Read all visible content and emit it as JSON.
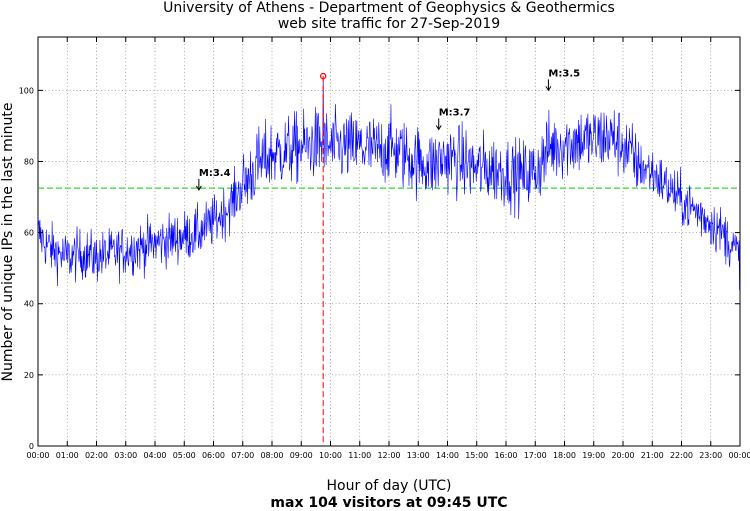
{
  "chart_data": {
    "type": "line",
    "title_lines": [
      "University of Athens - Department of Geophysics & Geothermics",
      "web site traffic for 27-Sep-2019"
    ],
    "xlabel": "Hour of day (UTC)",
    "ylabel": "Number of unique IPs in the last minute",
    "bottom_note": "max 104 visitors at 09:45 UTC",
    "xlim_hours": [
      0,
      24
    ],
    "ylim": [
      0,
      115
    ],
    "y_ticks": [
      0,
      20,
      40,
      60,
      80,
      100
    ],
    "x_tick_labels": [
      "00:00",
      "01:00",
      "02:00",
      "03:00",
      "04:00",
      "05:00",
      "06:00",
      "07:00",
      "08:00",
      "09:00",
      "10:00",
      "11:00",
      "12:00",
      "13:00",
      "14:00",
      "15:00",
      "16:00",
      "17:00",
      "18:00",
      "19:00",
      "20:00",
      "21:00",
      "22:00",
      "23:00",
      "00:00"
    ],
    "series": [
      {
        "name": "unique IPs per minute",
        "color": "#0000ff",
        "trend_x_hours": [
          0,
          0.25,
          0.5,
          1,
          1.5,
          2,
          2.5,
          3,
          3.5,
          4,
          4.5,
          5,
          5.5,
          6,
          6.5,
          7,
          7.5,
          8,
          8.5,
          9,
          9.5,
          10,
          10.5,
          11,
          11.5,
          12,
          12.5,
          13,
          13.5,
          14,
          14.5,
          15,
          15.5,
          16,
          16.5,
          17,
          17.5,
          18,
          18.5,
          19,
          19.5,
          20,
          20.5,
          21,
          21.5,
          22,
          22.5,
          23,
          23.5,
          24
        ],
        "trend_y": [
          60,
          57,
          55,
          53,
          54,
          53,
          54,
          55,
          56,
          57,
          58,
          59,
          60,
          63,
          67,
          73,
          79,
          82,
          83,
          84,
          85,
          84,
          84,
          84,
          83,
          84,
          82,
          80,
          79,
          81,
          80,
          78,
          78,
          77,
          76,
          77,
          84,
          85,
          86,
          86,
          87,
          85,
          79,
          77,
          73,
          69,
          66,
          63,
          59,
          53
        ]
      }
    ],
    "average_line": {
      "value": 72.5,
      "color": "#00cc00"
    },
    "max_marker": {
      "hour": 9.75,
      "value": 104,
      "color": "#ff0000"
    },
    "quake_markers": [
      {
        "label": "M:3.4",
        "hour": 5.5,
        "arrow_y": 72
      },
      {
        "label": "M:3.7",
        "hour": 13.7,
        "arrow_y": 89
      },
      {
        "label": "M:3.5",
        "hour": 17.45,
        "arrow_y": 100
      }
    ]
  }
}
